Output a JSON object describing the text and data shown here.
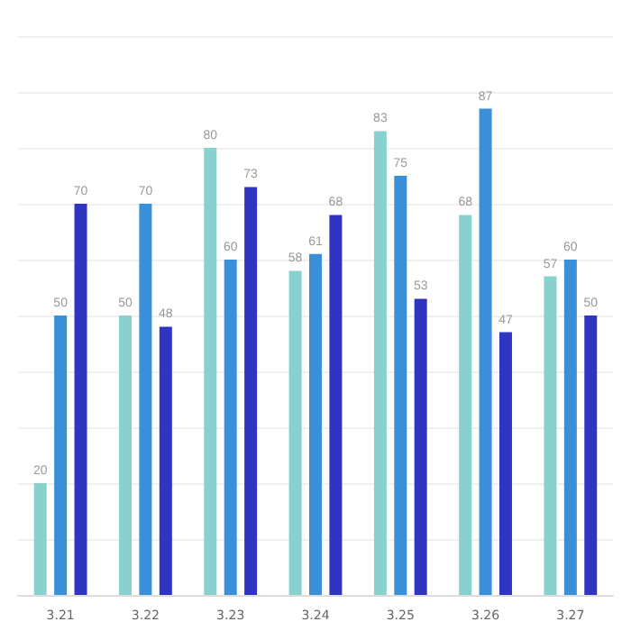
{
  "chart_data": {
    "type": "bar",
    "categories": [
      "3.21",
      "3.22",
      "3.23",
      "3.24",
      "3.25",
      "3.26",
      "3.27"
    ],
    "series": [
      {
        "color": "#88d1cf",
        "values": [
          20,
          50,
          80,
          58,
          83,
          68,
          57
        ]
      },
      {
        "color": "#3a8fd9",
        "values": [
          50,
          70,
          60,
          61,
          75,
          87,
          60
        ]
      },
      {
        "color": "#2f35c0",
        "values": [
          70,
          48,
          73,
          68,
          53,
          47,
          50
        ]
      }
    ],
    "ylim": [
      0,
      100
    ],
    "yticks": [
      {
        "value": 0,
        "label": null
      },
      {
        "value": 10,
        "label": null
      },
      {
        "value": 20,
        "label": null
      },
      {
        "value": 30,
        "label": null
      },
      {
        "value": 40,
        "label": null
      },
      {
        "value": 50,
        "label": null
      },
      {
        "value": 60,
        "label": null
      },
      {
        "value": 70,
        "label": null
      },
      {
        "value": 80,
        "label": null
      },
      {
        "value": 90,
        "label": null
      },
      {
        "value": 100,
        "label": null
      }
    ],
    "grid": "y",
    "tick_labels": "x",
    "data_labels": true
  }
}
